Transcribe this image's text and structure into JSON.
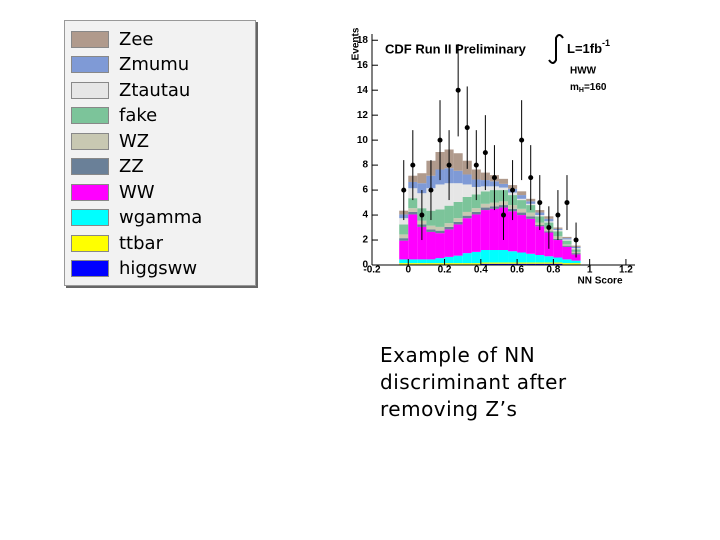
{
  "chart_data": {
    "type": "stacked-histogram",
    "annotation": "CDF Run II Preliminary",
    "lumi_label": "L=1fb",
    "lumi_exponent": "-1",
    "process_label": "HWW",
    "mass_symbol": "m",
    "mass_subscript": "H",
    "mass_value": "=160",
    "x_label": "NN Score",
    "y_label": "Events",
    "bins": [
      -0.05,
      0,
      0.05,
      0.1,
      0.15,
      0.2,
      0.25,
      0.3,
      0.35,
      0.4,
      0.45,
      0.5,
      0.55,
      0.6,
      0.65,
      0.7,
      0.75,
      0.8,
      0.85,
      0.9,
      0.95
    ],
    "series": [
      {
        "name": "Zee",
        "color": "#b09a8c",
        "values": [
          0.3,
          0.5,
          0.8,
          1.2,
          1.4,
          1.5,
          1.4,
          1.1,
          0.8,
          0.6,
          0.5,
          0.4,
          0.3,
          0.3,
          0.2,
          0.2,
          0.2,
          0.1,
          0.1,
          0.1
        ]
      },
      {
        "name": "Zmumu",
        "color": "#7f9ad6",
        "values": [
          0.3,
          0.5,
          0.8,
          1.0,
          1.2,
          1.2,
          1.0,
          0.8,
          0.6,
          0.5,
          0.4,
          0.3,
          0.3,
          0.3,
          0.2,
          0.2,
          0.2,
          0.1,
          0.1,
          0.1
        ]
      },
      {
        "name": "Ztautau",
        "color": "#e6e6e6",
        "values": [
          0.5,
          0.8,
          1.2,
          1.8,
          2.0,
          1.8,
          1.5,
          1.0,
          0.6,
          0.4,
          0.3,
          0.2,
          0.2,
          0.1,
          0.1,
          0.1,
          0.1,
          0.1,
          0.1,
          0.1
        ]
      },
      {
        "name": "fake",
        "color": "#7cc49a",
        "values": [
          0.8,
          0.8,
          1.0,
          1.2,
          1.4,
          1.4,
          1.3,
          1.2,
          1.1,
          1.0,
          1.0,
          0.9,
          0.8,
          0.7,
          0.6,
          0.5,
          0.5,
          0.4,
          0.3,
          0.2
        ]
      },
      {
        "name": "WZ",
        "color": "#c8c8b2",
        "values": [
          0.3,
          0.3,
          0.3,
          0.3,
          0.3,
          0.3,
          0.3,
          0.3,
          0.3,
          0.3,
          0.3,
          0.3,
          0.3,
          0.3,
          0.3,
          0.2,
          0.2,
          0.2,
          0.1,
          0.1
        ]
      },
      {
        "name": "ZZ",
        "color": "#6a8098",
        "values": [
          0.2,
          0.2,
          0.2,
          0.2,
          0.2,
          0.2,
          0.2,
          0.2,
          0.2,
          0.2,
          0.2,
          0.2,
          0.2,
          0.2,
          0.2,
          0.1,
          0.1,
          0.1,
          0.1,
          0.1
        ]
      },
      {
        "name": "WW",
        "color": "#ff00ff",
        "values": [
          1.5,
          3.6,
          2.6,
          2.2,
          2.0,
          2.2,
          2.5,
          2.8,
          3.0,
          3.2,
          3.3,
          3.4,
          3.2,
          3.0,
          2.8,
          2.3,
          1.9,
          1.4,
          1.0,
          0.5
        ]
      },
      {
        "name": "wgamma",
        "color": "#00ffff",
        "values": [
          0.3,
          0.3,
          0.3,
          0.3,
          0.4,
          0.5,
          0.6,
          0.8,
          0.9,
          1.0,
          1.0,
          1.0,
          0.9,
          0.8,
          0.7,
          0.6,
          0.5,
          0.4,
          0.3,
          0.2
        ]
      },
      {
        "name": "ttbar",
        "color": "#ffff00",
        "values": [
          0.1,
          0.1,
          0.1,
          0.1,
          0.1,
          0.1,
          0.1,
          0.1,
          0.1,
          0.1,
          0.1,
          0.1,
          0.1,
          0.1,
          0.1,
          0.1,
          0.1,
          0.1,
          0.1,
          0.1
        ]
      },
      {
        "name": "higgsww",
        "color": "#0000ff",
        "values": [
          0.05,
          0.05,
          0.05,
          0.05,
          0.05,
          0.05,
          0.05,
          0.05,
          0.05,
          0.1,
          0.1,
          0.1,
          0.1,
          0.1,
          0.1,
          0.1,
          0.1,
          0.1,
          0.05,
          0.05
        ]
      }
    ],
    "data_points": {
      "values": [
        6,
        8,
        4,
        6,
        10,
        8,
        14,
        11,
        8,
        9,
        7,
        4,
        6,
        10,
        7,
        5,
        3,
        4,
        5,
        2
      ],
      "errors": [
        2.4,
        2.8,
        2,
        2.4,
        3.2,
        2.8,
        3.7,
        3.3,
        2.8,
        3,
        2.6,
        2,
        2.4,
        3.2,
        2.6,
        2.2,
        1.7,
        2,
        2.2,
        1.4
      ]
    },
    "xlim": [
      -0.2,
      1.25
    ],
    "ylim": [
      0,
      18.5
    ],
    "xticks": [
      -0.2,
      0,
      0.2,
      0.4,
      0.6,
      0.8,
      1,
      1.2
    ],
    "yticks": [
      0,
      2,
      4,
      6,
      8,
      10,
      12,
      14,
      16,
      18
    ]
  },
  "caption": [
    "Example of NN",
    "discriminant after",
    "removing Z’s"
  ]
}
